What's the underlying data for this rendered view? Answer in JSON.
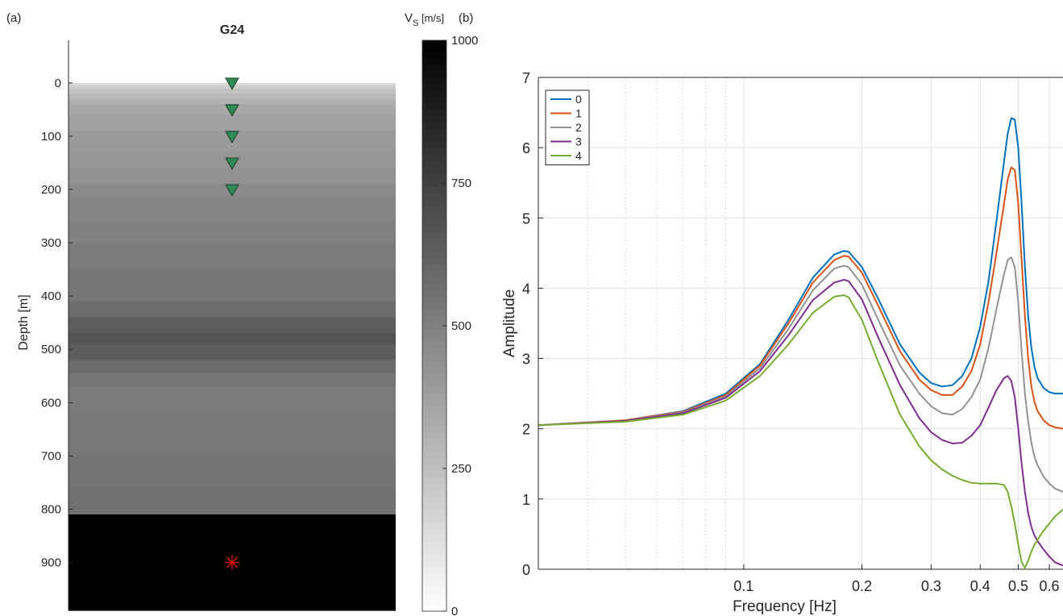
{
  "panel_a": {
    "label": "(a)",
    "title": "G24",
    "ylabel": "Depth [m]",
    "colorbar_label_main": "V",
    "colorbar_label_sub": "S",
    "colorbar_label_unit": " [m/s]"
  },
  "panel_b": {
    "label": "(b)"
  },
  "chart_data": [
    {
      "type": "heatmap",
      "title": "G24",
      "ylabel": "Depth [m]",
      "ylim": [
        -80,
        990
      ],
      "yticks": [
        0,
        100,
        200,
        300,
        400,
        500,
        600,
        700,
        800,
        900
      ],
      "colormap": "gray (white = 0, black = 1000)",
      "colorbar": {
        "label": "V_S [m/s]",
        "range": [
          0,
          1000
        ],
        "ticks": [
          0,
          250,
          500,
          750,
          1000
        ]
      },
      "layers": [
        {
          "top": 0,
          "bottom": 5,
          "vs": 150
        },
        {
          "top": 5,
          "bottom": 12,
          "vs": 200
        },
        {
          "top": 12,
          "bottom": 20,
          "vs": 240
        },
        {
          "top": 20,
          "bottom": 30,
          "vs": 270
        },
        {
          "top": 30,
          "bottom": 40,
          "vs": 310
        },
        {
          "top": 40,
          "bottom": 60,
          "vs": 340
        },
        {
          "top": 60,
          "bottom": 90,
          "vs": 370
        },
        {
          "top": 90,
          "bottom": 130,
          "vs": 395
        },
        {
          "top": 130,
          "bottom": 160,
          "vs": 410
        },
        {
          "top": 160,
          "bottom": 190,
          "vs": 430
        },
        {
          "top": 190,
          "bottom": 215,
          "vs": 460
        },
        {
          "top": 215,
          "bottom": 260,
          "vs": 480
        },
        {
          "top": 260,
          "bottom": 300,
          "vs": 495
        },
        {
          "top": 300,
          "bottom": 350,
          "vs": 515
        },
        {
          "top": 350,
          "bottom": 410,
          "vs": 535
        },
        {
          "top": 410,
          "bottom": 440,
          "vs": 575
        },
        {
          "top": 440,
          "bottom": 470,
          "vs": 640
        },
        {
          "top": 470,
          "bottom": 490,
          "vs": 675
        },
        {
          "top": 490,
          "bottom": 520,
          "vs": 635
        },
        {
          "top": 520,
          "bottom": 545,
          "vs": 575
        },
        {
          "top": 545,
          "bottom": 570,
          "vs": 540
        },
        {
          "top": 570,
          "bottom": 620,
          "vs": 520
        },
        {
          "top": 620,
          "bottom": 700,
          "vs": 530
        },
        {
          "top": 700,
          "bottom": 760,
          "vs": 545
        },
        {
          "top": 760,
          "bottom": 810,
          "vs": 560
        },
        {
          "top": 810,
          "bottom": 990,
          "vs": 1000
        }
      ],
      "receivers_depth": [
        0,
        50,
        100,
        150,
        200
      ],
      "source_depth": 900,
      "receiver_color": "#2e8b57",
      "source_color": "#ff0000"
    },
    {
      "type": "line",
      "xlabel": "Frequency [Hz]",
      "ylabel": "Amplitude",
      "xscale": "log",
      "xlim": [
        0.03,
        0.65
      ],
      "ylim": [
        0,
        7
      ],
      "xticks": [
        0.1,
        0.2,
        0.3,
        0.4,
        0.5,
        0.6
      ],
      "xticklabels": [
        "0.1",
        "0.2",
        "0.3",
        "0.4",
        "0.5",
        "0.6"
      ],
      "yticks": [
        0,
        1,
        2,
        3,
        4,
        5,
        6,
        7
      ],
      "grid": true,
      "legend": "top-left",
      "x": [
        0.03,
        0.05,
        0.07,
        0.09,
        0.11,
        0.13,
        0.15,
        0.17,
        0.18,
        0.185,
        0.2,
        0.22,
        0.25,
        0.28,
        0.3,
        0.32,
        0.34,
        0.36,
        0.38,
        0.4,
        0.42,
        0.44,
        0.46,
        0.47,
        0.48,
        0.49,
        0.5,
        0.51,
        0.52,
        0.53,
        0.54,
        0.55,
        0.56,
        0.58,
        0.6,
        0.62,
        0.65
      ],
      "series": [
        {
          "name": "0",
          "color": "#0072bd",
          "values": [
            2.05,
            2.12,
            2.25,
            2.5,
            2.92,
            3.55,
            4.15,
            4.48,
            4.53,
            4.52,
            4.3,
            3.85,
            3.2,
            2.8,
            2.65,
            2.6,
            2.62,
            2.75,
            3.0,
            3.45,
            4.1,
            4.95,
            5.8,
            6.2,
            6.42,
            6.4,
            6.0,
            5.2,
            4.3,
            3.6,
            3.15,
            2.88,
            2.72,
            2.58,
            2.52,
            2.5,
            2.5
          ]
        },
        {
          "name": "1",
          "color": "#d95319",
          "values": [
            2.05,
            2.12,
            2.24,
            2.48,
            2.9,
            3.5,
            4.08,
            4.4,
            4.46,
            4.45,
            4.22,
            3.75,
            3.1,
            2.7,
            2.55,
            2.48,
            2.48,
            2.6,
            2.82,
            3.2,
            3.8,
            4.5,
            5.2,
            5.55,
            5.72,
            5.68,
            5.2,
            4.4,
            3.6,
            3.0,
            2.6,
            2.38,
            2.25,
            2.12,
            2.05,
            2.02,
            2.0
          ]
        },
        {
          "name": "2",
          "color": "#929292",
          "values": [
            2.05,
            2.11,
            2.23,
            2.46,
            2.86,
            3.42,
            3.97,
            4.28,
            4.32,
            4.3,
            4.05,
            3.55,
            2.9,
            2.5,
            2.32,
            2.22,
            2.2,
            2.28,
            2.45,
            2.7,
            3.15,
            3.7,
            4.2,
            4.4,
            4.44,
            4.3,
            3.8,
            3.1,
            2.5,
            2.1,
            1.8,
            1.6,
            1.48,
            1.32,
            1.22,
            1.15,
            1.1
          ]
        },
        {
          "name": "3",
          "color": "#7e2f8e",
          "values": [
            2.05,
            2.11,
            2.22,
            2.44,
            2.82,
            3.33,
            3.83,
            4.08,
            4.12,
            4.1,
            3.84,
            3.3,
            2.62,
            2.15,
            1.95,
            1.84,
            1.79,
            1.8,
            1.9,
            2.05,
            2.3,
            2.55,
            2.72,
            2.75,
            2.68,
            2.45,
            2.0,
            1.5,
            1.1,
            0.8,
            0.6,
            0.48,
            0.4,
            0.28,
            0.18,
            0.1,
            0.05
          ]
        },
        {
          "name": "4",
          "color": "#77ac30",
          "values": [
            2.05,
            2.1,
            2.2,
            2.4,
            2.75,
            3.2,
            3.65,
            3.88,
            3.9,
            3.87,
            3.55,
            2.95,
            2.2,
            1.75,
            1.55,
            1.42,
            1.33,
            1.27,
            1.23,
            1.22,
            1.22,
            1.22,
            1.2,
            1.1,
            0.9,
            0.65,
            0.35,
            0.1,
            0.02,
            0.12,
            0.25,
            0.35,
            0.42,
            0.55,
            0.65,
            0.75,
            0.85
          ]
        }
      ]
    }
  ]
}
